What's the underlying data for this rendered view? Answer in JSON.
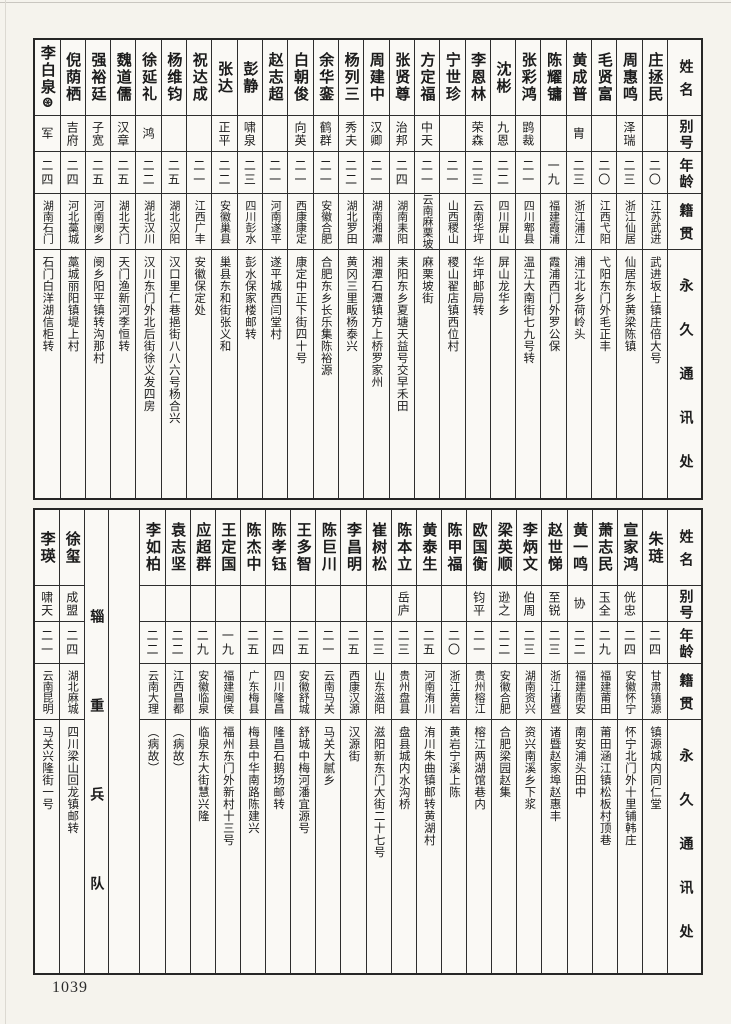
{
  "page_number": "1039",
  "column_headers": {
    "name": "姓名",
    "alias": "别号",
    "age": "年龄",
    "native": "籍贯",
    "address": "永久通讯处"
  },
  "top_table": {
    "persons": [
      {
        "name": "庄拯民",
        "alias": "",
        "age": "二〇",
        "native": "江苏武进",
        "address": "武进坂上镇庄倍大号"
      },
      {
        "name": "周惠鸣",
        "alias": "泽瑞",
        "age": "二三",
        "native": "浙江仙居",
        "address": "仙居东乡黄梁陈镇"
      },
      {
        "name": "毛贤富",
        "alias": "",
        "age": "二〇",
        "native": "江西弋阳",
        "address": "弋阳东门外毛正丰"
      },
      {
        "name": "黄成普",
        "alias": "胄",
        "age": "二三",
        "native": "浙江浦江",
        "address": "浦江北乡荷岭头"
      },
      {
        "name": "陈耀镛",
        "alias": "",
        "age": "一九",
        "native": "福建霞浦",
        "address": "霞浦西门外罗公保"
      },
      {
        "name": "张彩鸿",
        "alias": "鹍裁",
        "age": "二一",
        "native": "四川郫县",
        "address": "温江大南街七九号转"
      },
      {
        "name": "沈彬",
        "alias": "九恩",
        "age": "二二",
        "native": "四川屏山",
        "address": "屏山龙华乡"
      },
      {
        "name": "李恩林",
        "alias": "荣森",
        "age": "二三",
        "native": "云南华坪",
        "address": "华坪邮局转"
      },
      {
        "name": "宁世珍",
        "alias": "",
        "age": "二一",
        "native": "山西稷山",
        "address": "稷山翟店镇西位村"
      },
      {
        "name": "方定福",
        "alias": "中天",
        "age": "二一",
        "native": "云南麻栗坡",
        "address": "麻栗坡街"
      },
      {
        "name": "张贤尊",
        "alias": "治邦",
        "age": "二四",
        "native": "湖南耒阳",
        "address": "耒阳东乡夏塘天益号交早禾田"
      },
      {
        "name": "周建中",
        "alias": "汉卿",
        "age": "二一",
        "native": "湖南湘潭",
        "address": "湘潭石潭镇方上桥罗家州"
      },
      {
        "name": "杨列三",
        "alias": "秀夫",
        "age": "二二",
        "native": "湖北罗田",
        "address": "黄冈三里畈杨泰兴"
      },
      {
        "name": "余华銮",
        "alias": "鹤群",
        "age": "二一",
        "native": "安徽合肥",
        "address": "合肥东乡长乐集陈裕源"
      },
      {
        "name": "白朝俊",
        "alias": "向英",
        "age": "二一",
        "native": "西康康定",
        "address": "康定中正下街四十号"
      },
      {
        "name": "赵志超",
        "alias": "",
        "age": "二一",
        "native": "河南遂平",
        "address": "遂平城西闫堂村"
      },
      {
        "name": "彭静",
        "alias": "啸泉",
        "age": "二三",
        "native": "四川彭水",
        "address": "彭水保家楼邮转"
      },
      {
        "name": "张达",
        "alias": "正平",
        "age": "二二",
        "native": "安徽巢县",
        "address": "巢县东和街张义和"
      },
      {
        "name": "祝达成",
        "alias": "",
        "age": "二一",
        "native": "江西广丰",
        "address": "安徽保定处"
      },
      {
        "name": "杨维钧",
        "alias": "",
        "age": "二五",
        "native": "湖北汉阳",
        "address": "汉口里仁巷挹街八八六号杨合兴"
      },
      {
        "name": "徐延礼",
        "alias": "鸿",
        "age": "二二",
        "native": "湖北汉川",
        "address": "汉川东门外北后街徐义发四房"
      },
      {
        "name": "魏道儒",
        "alias": "汉章",
        "age": "二五",
        "native": "湖北天门",
        "address": "天门渔新河李恒转"
      },
      {
        "name": "强裕廷",
        "alias": "子宽",
        "age": "二五",
        "native": "河南阌乡",
        "address": "阌乡阳平镇转沟那村"
      },
      {
        "name": "倪荫栖",
        "alias": "吉府",
        "age": "二四",
        "native": "河北藁城",
        "address": "藁城丽阳镇堤上村"
      },
      {
        "name": "李白泉⊛",
        "alias": "军",
        "age": "二四",
        "native": "湖南石门",
        "address": "石门白洋湖信柜转"
      }
    ]
  },
  "bottom_table": {
    "persons_a": [
      {
        "name": "朱琏",
        "alias": "",
        "age": "二四",
        "native": "甘肃镇源",
        "address": "镇源城内同仁堂"
      },
      {
        "name": "宣家鸿",
        "alias": "侊忠",
        "age": "二四",
        "native": "安徽怀宁",
        "address": "怀宁北门外十里铺韩庄"
      },
      {
        "name": "萧志民",
        "alias": "玉全",
        "age": "二九",
        "native": "福建莆田",
        "address": "莆田涵江镇松板村顶巷"
      },
      {
        "name": "黄一鸣",
        "alias": "协",
        "age": "二二",
        "native": "福建南安",
        "address": "南安浦头田中"
      },
      {
        "name": "赵世悌",
        "alias": "至锐",
        "age": "二三",
        "native": "浙江诸暨",
        "address": "诸暨赵家埠赵惠丰"
      },
      {
        "name": "李炳文",
        "alias": "伯周",
        "age": "二三",
        "native": "湖南资兴",
        "address": "资兴南溪乡下浆"
      },
      {
        "name": "梁英顺",
        "alias": "逊之",
        "age": "二二",
        "native": "安徽合肥",
        "address": "合肥梁园赵集"
      },
      {
        "name": "欧国衡",
        "alias": "钧平",
        "age": "二一",
        "native": "贵州榕江",
        "address": "榕江两湖馆巷内"
      },
      {
        "name": "陈甲福",
        "alias": "",
        "age": "二〇",
        "native": "浙江黄岩",
        "address": "黄岩宁溪上陈"
      },
      {
        "name": "黄泰生",
        "alias": "",
        "age": "二五",
        "native": "河南洧川",
        "address": "洧川朱曲镇邮转黄湖村"
      },
      {
        "name": "陈本立",
        "alias": "岳庐",
        "age": "二三",
        "native": "贵州盘县",
        "address": "盘县城内水沟桥"
      },
      {
        "name": "崔树松",
        "alias": "",
        "age": "二三",
        "native": "山东滋阳",
        "address": "滋阳新东门大街二十七号"
      },
      {
        "name": "李昌明",
        "alias": "",
        "age": "二五",
        "native": "西康汉源",
        "address": "汉源街"
      },
      {
        "name": "陈巨川",
        "alias": "",
        "age": "二一",
        "native": "云南马关",
        "address": "马关大腻乡"
      },
      {
        "name": "王多智",
        "alias": "",
        "age": "二五",
        "native": "安徽舒城",
        "address": "舒城中梅河潘宜源号"
      },
      {
        "name": "陈孝钰",
        "alias": "",
        "age": "二四",
        "native": "四川隆昌",
        "address": "隆昌石鹅场邮转"
      },
      {
        "name": "陈杰中",
        "alias": "",
        "age": "二五",
        "native": "广东梅县",
        "address": "梅县中华南路陈建兴"
      },
      {
        "name": "王定国",
        "alias": "",
        "age": "一九",
        "native": "福建闽侯",
        "address": "福州东门外新村十三号"
      },
      {
        "name": "应超群",
        "alias": "",
        "age": "二九",
        "native": "安徽临泉",
        "address": "临泉东大街慧兴隆"
      },
      {
        "name": "袁志坚",
        "alias": "",
        "age": "二二",
        "native": "江西昌都",
        "address": "（病故）"
      },
      {
        "name": "李如柏",
        "alias": "",
        "age": "二二",
        "native": "云南大理",
        "address": "（病故）"
      }
    ],
    "divider": {
      "label": "辎重兵队"
    },
    "persons_b": [
      {
        "name": "徐玺",
        "alias": "成盟",
        "age": "二四",
        "native": "湖北麻城",
        "address": "四川梁山回龙镇邮转"
      },
      {
        "name": "李瑛",
        "alias": "啸天",
        "age": "二一",
        "native": "云南昆明",
        "address": "马关兴隆街一号"
      }
    ]
  }
}
